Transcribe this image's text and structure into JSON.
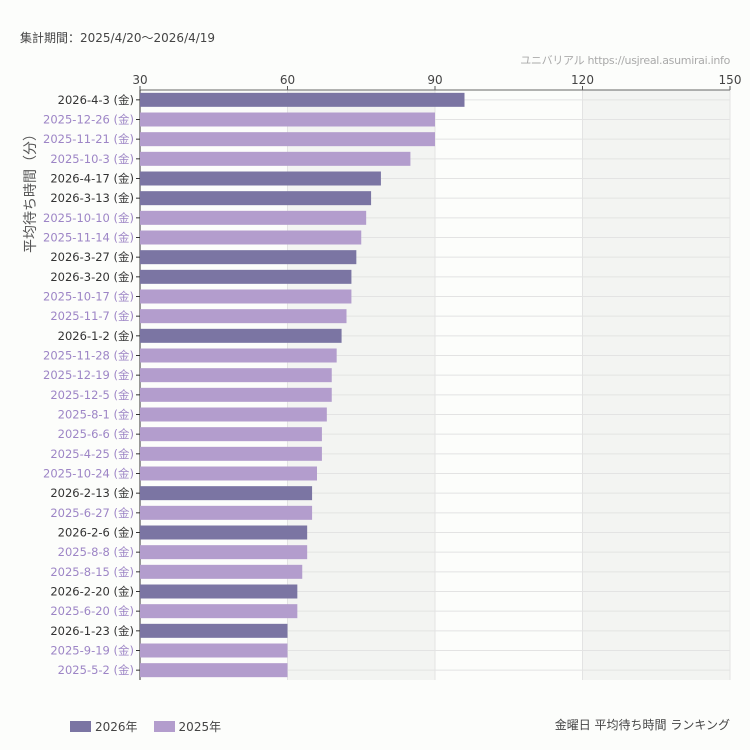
{
  "header": {
    "period": "集計期間：2025/4/20〜2026/4/19",
    "source": "ユニバリアル  https://usjreal.asumirai.info"
  },
  "footer": {
    "caption": "金曜日 平均待ち時間 ランキング"
  },
  "colors": {
    "2026": "#7b75a3",
    "2025": "#b39dcd",
    "label2026": "#333333",
    "label2025": "#9d85c6",
    "band": "#f3f4f2",
    "grid": "#e3e3e3"
  },
  "chart_data": {
    "type": "bar",
    "orientation": "horizontal",
    "ylabel": "平均待ち時間（分）",
    "xlim": [
      30,
      150
    ],
    "xticks": [
      "30",
      "60",
      "90",
      "120",
      "150"
    ],
    "grid": true,
    "legend_position": "bottom-left",
    "legend": [
      {
        "name": "2026年",
        "key": "2026"
      },
      {
        "name": "2025年",
        "key": "2025"
      }
    ],
    "categories": [
      "2026-4-3 (金)",
      "2025-12-26 (金)",
      "2025-11-21 (金)",
      "2025-10-3 (金)",
      "2026-4-17 (金)",
      "2026-3-13 (金)",
      "2025-10-10 (金)",
      "2025-11-14 (金)",
      "2026-3-27 (金)",
      "2026-3-20 (金)",
      "2025-10-17 (金)",
      "2025-11-7 (金)",
      "2026-1-2 (金)",
      "2025-11-28 (金)",
      "2025-12-19 (金)",
      "2025-12-5 (金)",
      "2025-8-1 (金)",
      "2025-6-6 (金)",
      "2025-4-25 (金)",
      "2025-10-24 (金)",
      "2026-2-13 (金)",
      "2025-6-27 (金)",
      "2026-2-6 (金)",
      "2025-8-8 (金)",
      "2025-8-15 (金)",
      "2026-2-20 (金)",
      "2025-6-20 (金)",
      "2026-1-23 (金)",
      "2025-9-19 (金)",
      "2025-5-2 (金)"
    ],
    "values": [
      96,
      90,
      90,
      85,
      79,
      77,
      76,
      75,
      74,
      73,
      73,
      72,
      71,
      70,
      69,
      69,
      68,
      67,
      67,
      66,
      65,
      65,
      64,
      64,
      63,
      62,
      62,
      60,
      60,
      60
    ]
  }
}
